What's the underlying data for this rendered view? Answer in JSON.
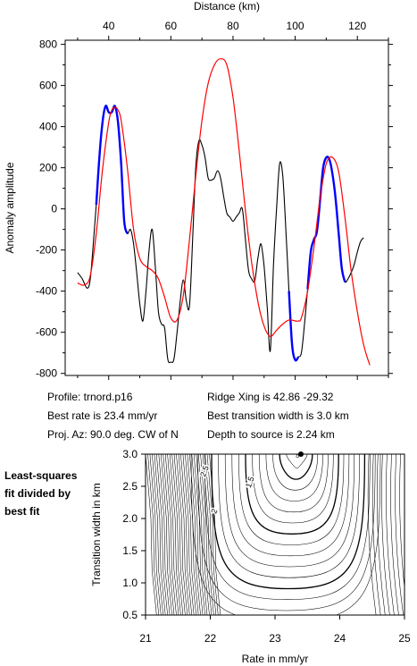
{
  "chart_data": [
    {
      "type": "line",
      "xlabel": "Distance (km)",
      "ylabel": "Anomaly amplitude",
      "xlim": [
        26,
        130
      ],
      "ylim": [
        -810,
        820
      ],
      "xticks": [
        40,
        60,
        80,
        100,
        120
      ],
      "yticks": [
        -800,
        -600,
        -400,
        -200,
        0,
        200,
        400,
        600,
        800
      ],
      "series": [
        {
          "id": "observed",
          "color": "#000000",
          "x": [
            30,
            31.5,
            33,
            34,
            35,
            36,
            37,
            38,
            39,
            40,
            41,
            42,
            43,
            44,
            45,
            46,
            47,
            48,
            49,
            50,
            51,
            52,
            53,
            54,
            55,
            56,
            57,
            58,
            59,
            60,
            61,
            62,
            63,
            64,
            65,
            66,
            67,
            68,
            69,
            70,
            71,
            72,
            73,
            74,
            75,
            76,
            77,
            78,
            79,
            80,
            81,
            82,
            83,
            84,
            85,
            86,
            87,
            88,
            89,
            90,
            91,
            92,
            93,
            94,
            95,
            96,
            97,
            98,
            99,
            100,
            101,
            102,
            103,
            104,
            105,
            106,
            107,
            108,
            109,
            110,
            111,
            112,
            113,
            114,
            115,
            116,
            117,
            118,
            119,
            120,
            121,
            122
          ],
          "y": [
            -310,
            -340,
            -385,
            -350,
            -180,
            20,
            250,
            420,
            500,
            470,
            470,
            500,
            420,
            220,
            -60,
            -120,
            -100,
            -170,
            -310,
            -460,
            -545,
            -400,
            -200,
            -100,
            -280,
            -500,
            -560,
            -580,
            -730,
            -745,
            -730,
            -600,
            -450,
            -345,
            -450,
            -470,
            -150,
            200,
            330,
            310,
            250,
            150,
            140,
            150,
            185,
            150,
            60,
            -20,
            -40,
            -60,
            -40,
            -20,
            0,
            -150,
            -300,
            -340,
            -350,
            -240,
            -170,
            -280,
            -480,
            -690,
            -280,
            0,
            220,
            160,
            -100,
            -400,
            -660,
            -735,
            -720,
            -700,
            -560,
            -390,
            -210,
            -150,
            -110,
            40,
            200,
            250,
            240,
            170,
            50,
            -120,
            -290,
            -355,
            -340,
            -310,
            -270,
            -210,
            -160,
            -140
          ]
        },
        {
          "id": "fit-segments",
          "color": "#0000ff",
          "segments": [
            {
              "x": [
                36,
                37,
                38,
                39,
                40,
                41,
                42,
                43,
                44,
                45,
                46
              ],
              "y": [
                20,
                250,
                420,
                500,
                470,
                470,
                500,
                420,
                220,
                -60,
                -120
              ]
            },
            {
              "x": [
                98,
                99,
                100,
                101
              ],
              "y": [
                -400,
                -660,
                -735,
                -720
              ]
            },
            {
              "x": [
                104,
                105,
                106,
                107,
                108,
                109,
                110,
                111,
                112,
                113,
                114,
                115,
                116
              ],
              "y": [
                -390,
                -210,
                -150,
                -110,
                40,
                200,
                250,
                240,
                170,
                50,
                -120,
                -290,
                -355
              ]
            }
          ]
        },
        {
          "id": "synthetic",
          "color": "#ff0000",
          "x": [
            30,
            32,
            34,
            36,
            38,
            40,
            41,
            42,
            43,
            44,
            46,
            48,
            50,
            52,
            54,
            56,
            58,
            60,
            62,
            64,
            66,
            68,
            70,
            72,
            74,
            76,
            78,
            80,
            82,
            84,
            86,
            88,
            90,
            92,
            94,
            96,
            98,
            100,
            101,
            102,
            104,
            106,
            108,
            110,
            112,
            114,
            116,
            118,
            120,
            122,
            124
          ],
          "y": [
            -360,
            -370,
            -330,
            -120,
            190,
            420,
            480,
            495,
            480,
            430,
            200,
            -100,
            -240,
            -280,
            -300,
            -340,
            -430,
            -530,
            -540,
            -420,
            -150,
            160,
            430,
            610,
            700,
            730,
            700,
            540,
            280,
            -10,
            -260,
            -450,
            -570,
            -620,
            -590,
            -560,
            -540,
            -545,
            -545,
            -530,
            -400,
            -190,
            50,
            220,
            250,
            180,
            -40,
            -300,
            -500,
            -660,
            -760
          ]
        }
      ]
    },
    {
      "type": "contour",
      "xlabel": "Rate in mm/yr",
      "ylabel": "Transition width in km",
      "xlim": [
        21,
        25
      ],
      "ylim": [
        0.5,
        3.0
      ],
      "xticks": [
        21,
        22,
        23,
        24,
        25
      ],
      "yticks": [
        0.5,
        1.0,
        1.5,
        2.0,
        2.5,
        3.0
      ],
      "contour_labels": [
        "2.5",
        "1.5",
        "2"
      ],
      "best_fit_point": {
        "rate": 23.4,
        "width": 3.0
      }
    }
  ],
  "top_axis_label": "Distance (km)",
  "results": {
    "profile": "Profile: trnord.p16",
    "best_rate": "Best rate is 23.4 mm/yr",
    "proj_az": "Proj. Az: 90.0 deg. CW of N",
    "ridge_xing": "Ridge Xing is 42.86 -29.32",
    "best_width": "Best transition width is 3.0 km",
    "depth": "Depth to source is   2.24 km"
  },
  "side_note": [
    "Least-squares",
    "fit divided by",
    "best fit"
  ]
}
